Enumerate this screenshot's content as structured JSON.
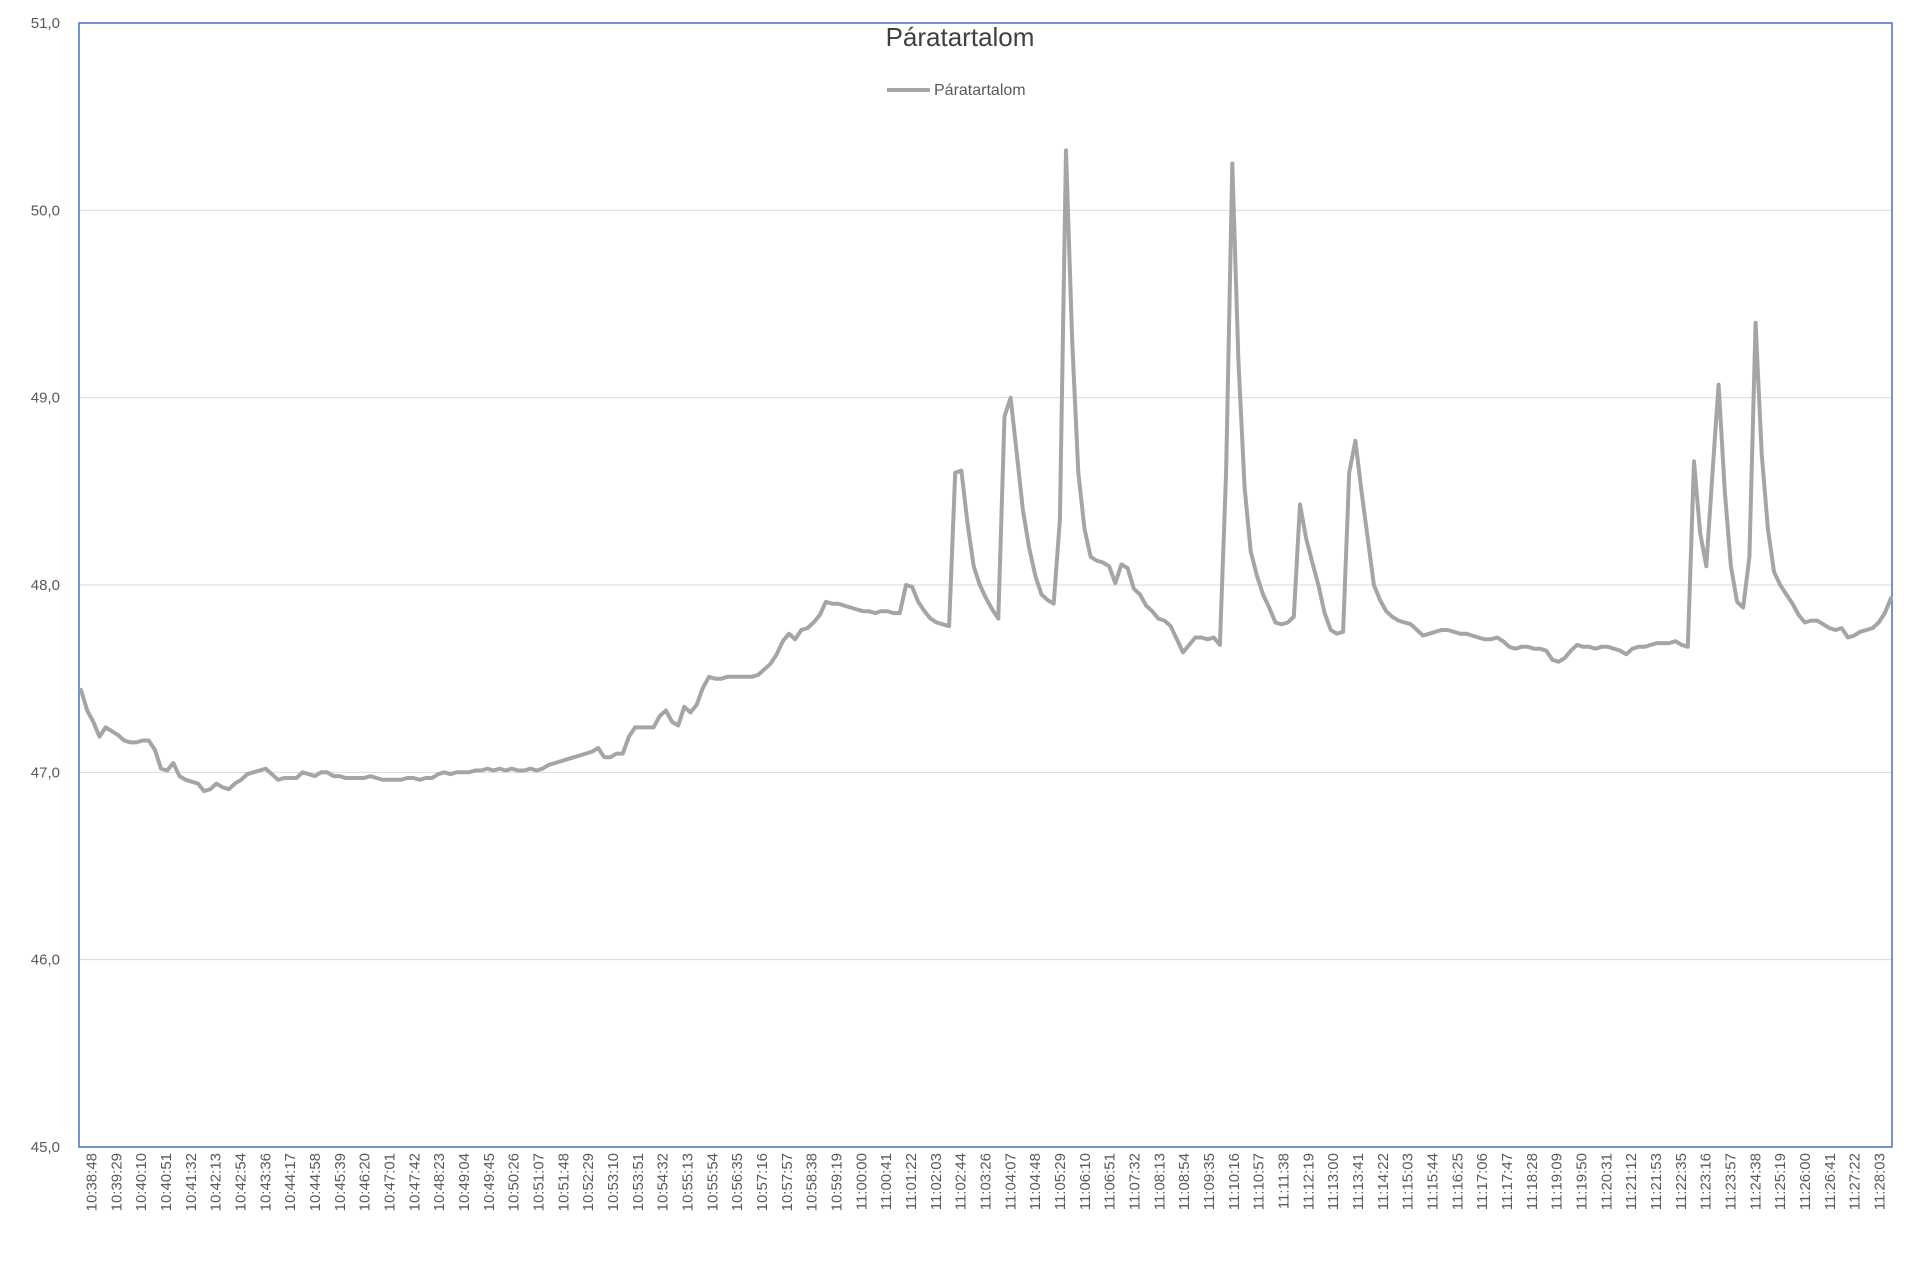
{
  "chart_data": {
    "type": "line",
    "title": "Páratartalom",
    "xlabel": "",
    "ylabel": "",
    "ylim": [
      45,
      51
    ],
    "y_ticks": [
      "45,0",
      "46,0",
      "47,0",
      "48,0",
      "49,0",
      "50,0",
      "51,0"
    ],
    "grid": "horizontal",
    "legend": {
      "position": "top",
      "entries": [
        "Páratartalom"
      ]
    },
    "x_tick_labels": [
      "10:38:48",
      "10:39:29",
      "10:40:10",
      "10:40:51",
      "10:41:32",
      "10:42:13",
      "10:42:54",
      "10:43:36",
      "10:44:17",
      "10:44:58",
      "10:45:39",
      "10:46:20",
      "10:47:01",
      "10:47:42",
      "10:48:23",
      "10:49:04",
      "10:49:45",
      "10:50:26",
      "10:51:07",
      "10:51:48",
      "10:52:29",
      "10:53:10",
      "10:53:51",
      "10:54:32",
      "10:55:13",
      "10:55:54",
      "10:56:35",
      "10:57:16",
      "10:57:57",
      "10:58:38",
      "10:59:19",
      "11:00:00",
      "11:00:41",
      "11:01:22",
      "11:02:03",
      "11:02:44",
      "11:03:26",
      "11:04:07",
      "11:04:48",
      "11:05:29",
      "11:06:10",
      "11:06:51",
      "11:07:32",
      "11:08:13",
      "11:08:54",
      "11:09:35",
      "11:10:16",
      "11:10:57",
      "11:11:38",
      "11:12:19",
      "11:13:00",
      "11:13:41",
      "11:14:22",
      "11:15:03",
      "11:15:44",
      "11:16:25",
      "11:17:06",
      "11:17:47",
      "11:18:28",
      "11:19:09",
      "11:19:50",
      "11:20:31",
      "11:21:12",
      "11:21:53",
      "11:22:35",
      "11:23:16",
      "11:23:57",
      "11:24:38",
      "11:25:19",
      "11:26:00",
      "11:26:41",
      "11:27:22",
      "11:28:03"
    ],
    "series": [
      {
        "name": "Páratartalom",
        "color": "#a5a5a5",
        "values": [
          47.44,
          47.33,
          47.27,
          47.19,
          47.24,
          47.22,
          47.2,
          47.17,
          47.16,
          47.16,
          47.17,
          47.17,
          47.12,
          47.02,
          47.01,
          47.05,
          46.98,
          46.96,
          46.95,
          46.94,
          46.9,
          46.91,
          46.94,
          46.92,
          46.91,
          46.94,
          46.96,
          46.99,
          47.0,
          47.01,
          47.02,
          46.99,
          46.96,
          46.97,
          46.97,
          46.97,
          47.0,
          46.99,
          46.98,
          47.0,
          47.0,
          46.98,
          46.98,
          46.97,
          46.97,
          46.97,
          46.97,
          46.98,
          46.97,
          46.96,
          46.96,
          46.96,
          46.96,
          46.97,
          46.97,
          46.96,
          46.97,
          46.97,
          46.99,
          47.0,
          46.99,
          47.0,
          47.0,
          47.0,
          47.01,
          47.01,
          47.02,
          47.01,
          47.02,
          47.01,
          47.02,
          47.01,
          47.01,
          47.02,
          47.01,
          47.02,
          47.04,
          47.05,
          47.06,
          47.07,
          47.08,
          47.09,
          47.1,
          47.11,
          47.13,
          47.08,
          47.08,
          47.1,
          47.1,
          47.19,
          47.24,
          47.24,
          47.24,
          47.24,
          47.3,
          47.33,
          47.27,
          47.25,
          47.35,
          47.32,
          47.36,
          47.45,
          47.51,
          47.5,
          47.5,
          47.51,
          47.51,
          47.51,
          47.51,
          47.51,
          47.52,
          47.55,
          47.58,
          47.63,
          47.7,
          47.74,
          47.71,
          47.76,
          47.77,
          47.8,
          47.84,
          47.91,
          47.9,
          47.9,
          47.89,
          47.88,
          47.87,
          47.86,
          47.86,
          47.85,
          47.86,
          47.86,
          47.85,
          47.85,
          48.0,
          47.99,
          47.91,
          47.86,
          47.82,
          47.8,
          47.79,
          47.78,
          48.6,
          48.61,
          48.33,
          48.1,
          48.0,
          47.93,
          47.87,
          47.82,
          48.9,
          49.0,
          48.7,
          48.4,
          48.2,
          48.05,
          47.95,
          47.92,
          47.9,
          48.35,
          50.32,
          49.3,
          48.6,
          48.3,
          48.15,
          48.13,
          48.12,
          48.1,
          48.01,
          48.11,
          48.09,
          47.98,
          47.95,
          47.89,
          47.86,
          47.82,
          47.81,
          47.78,
          47.71,
          47.64,
          47.68,
          47.72,
          47.72,
          47.71,
          47.72,
          47.68,
          48.6,
          50.25,
          49.2,
          48.52,
          48.18,
          48.05,
          47.95,
          47.88,
          47.8,
          47.79,
          47.8,
          47.83,
          48.43,
          48.25,
          48.12,
          48.0,
          47.85,
          47.76,
          47.74,
          47.75,
          48.6,
          48.77,
          48.5,
          48.25,
          48.0,
          47.92,
          47.86,
          47.83,
          47.81,
          47.8,
          47.79,
          47.76,
          47.73,
          47.74,
          47.75,
          47.76,
          47.76,
          47.75,
          47.74,
          47.74,
          47.73,
          47.72,
          47.71,
          47.71,
          47.72,
          47.7,
          47.67,
          47.66,
          47.67,
          47.67,
          47.66,
          47.66,
          47.65,
          47.6,
          47.59,
          47.61,
          47.65,
          47.68,
          47.67,
          47.67,
          47.66,
          47.67,
          47.67,
          47.66,
          47.65,
          47.63,
          47.66,
          47.67,
          47.67,
          47.68,
          47.69,
          47.69,
          47.69,
          47.7,
          47.68,
          47.67,
          48.66,
          48.28,
          48.1,
          48.6,
          49.07,
          48.5,
          48.1,
          47.91,
          47.88,
          48.15,
          49.4,
          48.7,
          48.3,
          48.07,
          48.0,
          47.95,
          47.9,
          47.84,
          47.8,
          47.81,
          47.81,
          47.79,
          47.77,
          47.76,
          47.77,
          47.72,
          47.73,
          47.75,
          47.76,
          47.77,
          47.8,
          47.85,
          47.93
        ]
      }
    ]
  }
}
